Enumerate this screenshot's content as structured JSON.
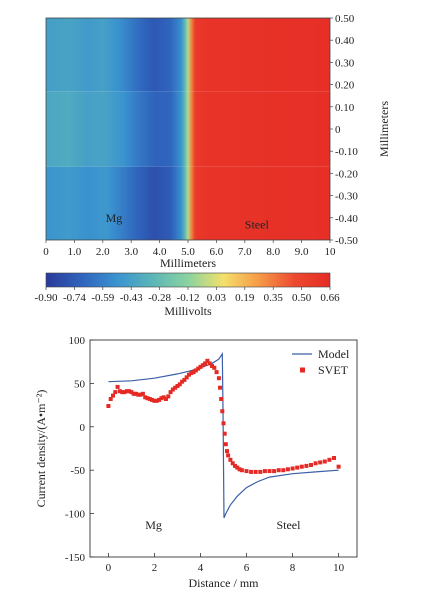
{
  "chart_data": [
    {
      "type": "heatmap",
      "region_labels": [
        "Mg",
        "Steel"
      ],
      "x_ticks": [
        "0",
        "1.0",
        "2.0",
        "3.0",
        "4.0",
        "5.0",
        "6.0",
        "7.0",
        "8.0",
        "9.0",
        "10"
      ],
      "xlabel": "Millimeters",
      "y_ticks": [
        "0.50",
        "0.40",
        "0.30",
        "0.20",
        "0.10",
        "0",
        "-0.10",
        "-0.20",
        "-0.30",
        "-0.40",
        "-0.50"
      ],
      "ylabel": "Millimeters",
      "xlim": [
        0,
        10
      ],
      "ylim": [
        -0.5,
        0.5
      ],
      "colorbar": {
        "ticks": [
          "-0.90",
          "-0.74",
          "-0.59",
          "-0.43",
          "-0.28",
          "-0.12",
          "0.03",
          "0.19",
          "0.35",
          "0.50",
          "0.66"
        ],
        "label": "Millivolts",
        "range": [
          -0.9,
          0.66
        ],
        "colors": [
          "#2a3a9a",
          "#2f64bd",
          "#3a93cf",
          "#5bb6b8",
          "#8ad3a0",
          "#f4e06a",
          "#f59a46",
          "#ee4a30",
          "#e52a25"
        ]
      },
      "rows": [
        {
          "y_range": [
            0.17,
            0.5
          ],
          "points": [
            [
              0,
              -0.45
            ],
            [
              0.8,
              -0.42
            ],
            [
              1.5,
              -0.47
            ],
            [
              2.0,
              -0.44
            ],
            [
              2.6,
              -0.52
            ],
            [
              3.2,
              -0.66
            ],
            [
              3.8,
              -0.76
            ],
            [
              4.4,
              -0.7
            ],
            [
              4.8,
              -0.5
            ],
            [
              5.0,
              -0.05
            ],
            [
              5.2,
              0.55
            ],
            [
              5.6,
              0.6
            ],
            [
              10,
              0.63
            ]
          ]
        },
        {
          "y_range": [
            -0.17,
            0.17
          ],
          "points": [
            [
              0,
              -0.4
            ],
            [
              0.8,
              -0.38
            ],
            [
              1.5,
              -0.44
            ],
            [
              2.0,
              -0.42
            ],
            [
              2.7,
              -0.5
            ],
            [
              3.3,
              -0.63
            ],
            [
              3.9,
              -0.72
            ],
            [
              4.4,
              -0.7
            ],
            [
              4.8,
              -0.48
            ],
            [
              5.0,
              -0.05
            ],
            [
              5.2,
              0.55
            ],
            [
              5.6,
              0.6
            ],
            [
              10,
              0.63
            ]
          ]
        },
        {
          "y_range": [
            -0.5,
            -0.17
          ],
          "points": [
            [
              0,
              -0.5
            ],
            [
              0.8,
              -0.47
            ],
            [
              1.5,
              -0.52
            ],
            [
              2.1,
              -0.48
            ],
            [
              2.6,
              -0.58
            ],
            [
              3.2,
              -0.7
            ],
            [
              3.8,
              -0.8
            ],
            [
              4.4,
              -0.74
            ],
            [
              4.8,
              -0.5
            ],
            [
              5.0,
              -0.05
            ],
            [
              5.2,
              0.55
            ],
            [
              5.6,
              0.6
            ],
            [
              10,
              0.63
            ]
          ]
        }
      ]
    },
    {
      "type": "line",
      "xlabel": "Distance / mm",
      "ylabel": "Current density/(A•m⁻²)",
      "xlim": [
        -0.8,
        10.8
      ],
      "ylim": [
        -150,
        100
      ],
      "x_ticks": [
        0,
        2,
        4,
        6,
        8,
        10
      ],
      "y_ticks": [
        100,
        50,
        0,
        -50,
        -100,
        -150
      ],
      "region_labels": [
        "Mg",
        "Steel"
      ],
      "legend_position": "top-right",
      "series": [
        {
          "name": "Model",
          "style": "line",
          "color": "#3b5fa8",
          "x": [
            0,
            1,
            2,
            3,
            3.5,
            4,
            4.5,
            4.8,
            4.95,
            4.98,
            5.02,
            5.1,
            5.3,
            5.6,
            6,
            6.5,
            7,
            8,
            9,
            10
          ],
          "y": [
            52,
            53,
            56,
            61,
            64,
            68,
            73,
            78,
            84,
            20,
            -105,
            -100,
            -90,
            -80,
            -70,
            -63,
            -58,
            -54,
            -52,
            -50
          ]
        },
        {
          "name": "SVET",
          "style": "scatter",
          "color": "#e52a25",
          "x": [
            0,
            0.1,
            0.2,
            0.3,
            0.4,
            0.5,
            0.6,
            0.7,
            0.8,
            0.9,
            1.0,
            1.1,
            1.2,
            1.3,
            1.4,
            1.5,
            1.6,
            1.7,
            1.8,
            1.9,
            2.0,
            2.1,
            2.2,
            2.3,
            2.4,
            2.5,
            2.6,
            2.7,
            2.8,
            2.9,
            3.0,
            3.1,
            3.2,
            3.3,
            3.4,
            3.5,
            3.6,
            3.7,
            3.8,
            3.9,
            4.0,
            4.1,
            4.2,
            4.3,
            4.4,
            4.5,
            4.6,
            4.7,
            4.8,
            4.85,
            4.9,
            4.95,
            5.0,
            5.05,
            5.1,
            5.15,
            5.2,
            5.3,
            5.4,
            5.5,
            5.6,
            5.7,
            5.8,
            6.0,
            6.2,
            6.4,
            6.6,
            6.8,
            7.0,
            7.2,
            7.4,
            7.6,
            7.8,
            8.0,
            8.2,
            8.4,
            8.6,
            8.8,
            9.0,
            9.2,
            9.4,
            9.6,
            9.8,
            10.0
          ],
          "y": [
            24,
            32,
            36,
            40,
            46,
            41,
            40,
            40,
            41,
            41,
            40,
            38,
            38,
            37,
            37,
            38,
            34,
            33,
            32,
            31,
            30,
            30,
            31,
            33,
            34,
            32,
            35,
            40,
            43,
            45,
            47,
            49,
            52,
            54,
            57,
            60,
            62,
            63,
            65,
            67,
            69,
            71,
            73,
            76,
            73,
            70,
            68,
            63,
            56,
            45,
            32,
            18,
            4,
            -8,
            -20,
            -28,
            -33,
            -38,
            -42,
            -45,
            -47,
            -49,
            -50,
            -51,
            -52,
            -52,
            -52,
            -51,
            -51,
            -51,
            -50,
            -50,
            -49,
            -48,
            -47,
            -46,
            -45,
            -44,
            -42,
            -41,
            -40,
            -38,
            -36,
            -46
          ]
        }
      ]
    }
  ]
}
